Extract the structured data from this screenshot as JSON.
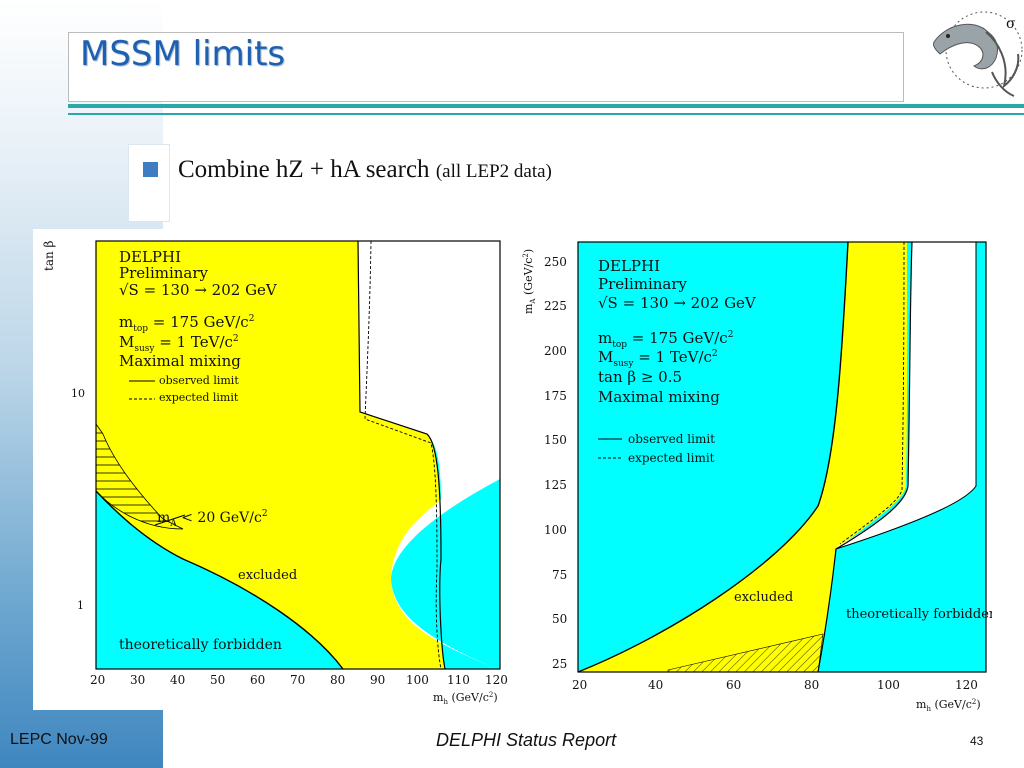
{
  "slide": {
    "title": "MSSM limits",
    "bullet_main": "Combine hZ + hA search ",
    "bullet_small": "(all LEP2 data)"
  },
  "left_plot": {
    "y_label": "tan β",
    "x_label": "m",
    "x_label_sub": "h",
    "x_label_unit": " (GeV/c",
    "x_label_tail": ")",
    "y_ticks": [
      "10",
      "1"
    ],
    "x_ticks": [
      "20",
      "30",
      "40",
      "50",
      "60",
      "70",
      "80",
      "90",
      "100",
      "110",
      "120"
    ],
    "legend": {
      "exp": "DELPHI",
      "status": "Preliminary",
      "energy": "√S = 130 → 202 GeV",
      "mtop_a": "m",
      "mtop_sub": "top",
      "mtop_b": " = 175 GeV/c",
      "msusy_a": "M",
      "msusy_sub": "susy",
      "msusy_b": " = 1 TeV/c",
      "mixing": "Maximal mixing",
      "observed": "observed limit",
      "expected": "expected limit"
    },
    "annot_ma_a": "m",
    "annot_ma_sub": "A",
    "annot_ma_b": " < 20 GeV/c",
    "annot_excluded": "excluded",
    "annot_forbidden": "theoretically forbidden",
    "colors": {
      "excluded": "#ffff00",
      "forbidden": "#00ffff"
    }
  },
  "right_plot": {
    "y_label_a": "m",
    "y_label_sub": "A",
    "y_label_b": " (GeV/c",
    "y_label_c": ")",
    "x_label": "m",
    "x_label_sub": "h",
    "x_label_unit": " (GeV/c",
    "x_label_tail": ")",
    "y_ticks": [
      "250",
      "225",
      "200",
      "175",
      "150",
      "125",
      "100",
      "75",
      "50",
      "25"
    ],
    "x_ticks": [
      "20",
      "40",
      "60",
      "80",
      "100",
      "120"
    ],
    "legend": {
      "exp": "DELPHI",
      "status": "Preliminary",
      "energy": "√S = 130 → 202 GeV",
      "mtop_a": "m",
      "mtop_sub": "top",
      "mtop_b": " = 175 GeV/c",
      "msusy_a": "M",
      "msusy_sub": "susy",
      "msusy_b": " = 1 TeV/c",
      "tanb": "tan β ≥ 0.5",
      "mixing": "Maximal mixing",
      "observed": "observed limit",
      "expected": "expected limit"
    },
    "annot_excluded": "excluded",
    "annot_forbidden": "theoretically forbidden",
    "colors": {
      "excluded": "#ffff00",
      "forbidden": "#00ffff"
    }
  },
  "footer": {
    "left": "LEPC Nov-99",
    "center": "DELPHI Status Report",
    "page": "43"
  },
  "theme": {
    "accent": "#2aa7a7",
    "title_color": "#1d5fb0",
    "bullet_color": "#3f7cc4"
  }
}
